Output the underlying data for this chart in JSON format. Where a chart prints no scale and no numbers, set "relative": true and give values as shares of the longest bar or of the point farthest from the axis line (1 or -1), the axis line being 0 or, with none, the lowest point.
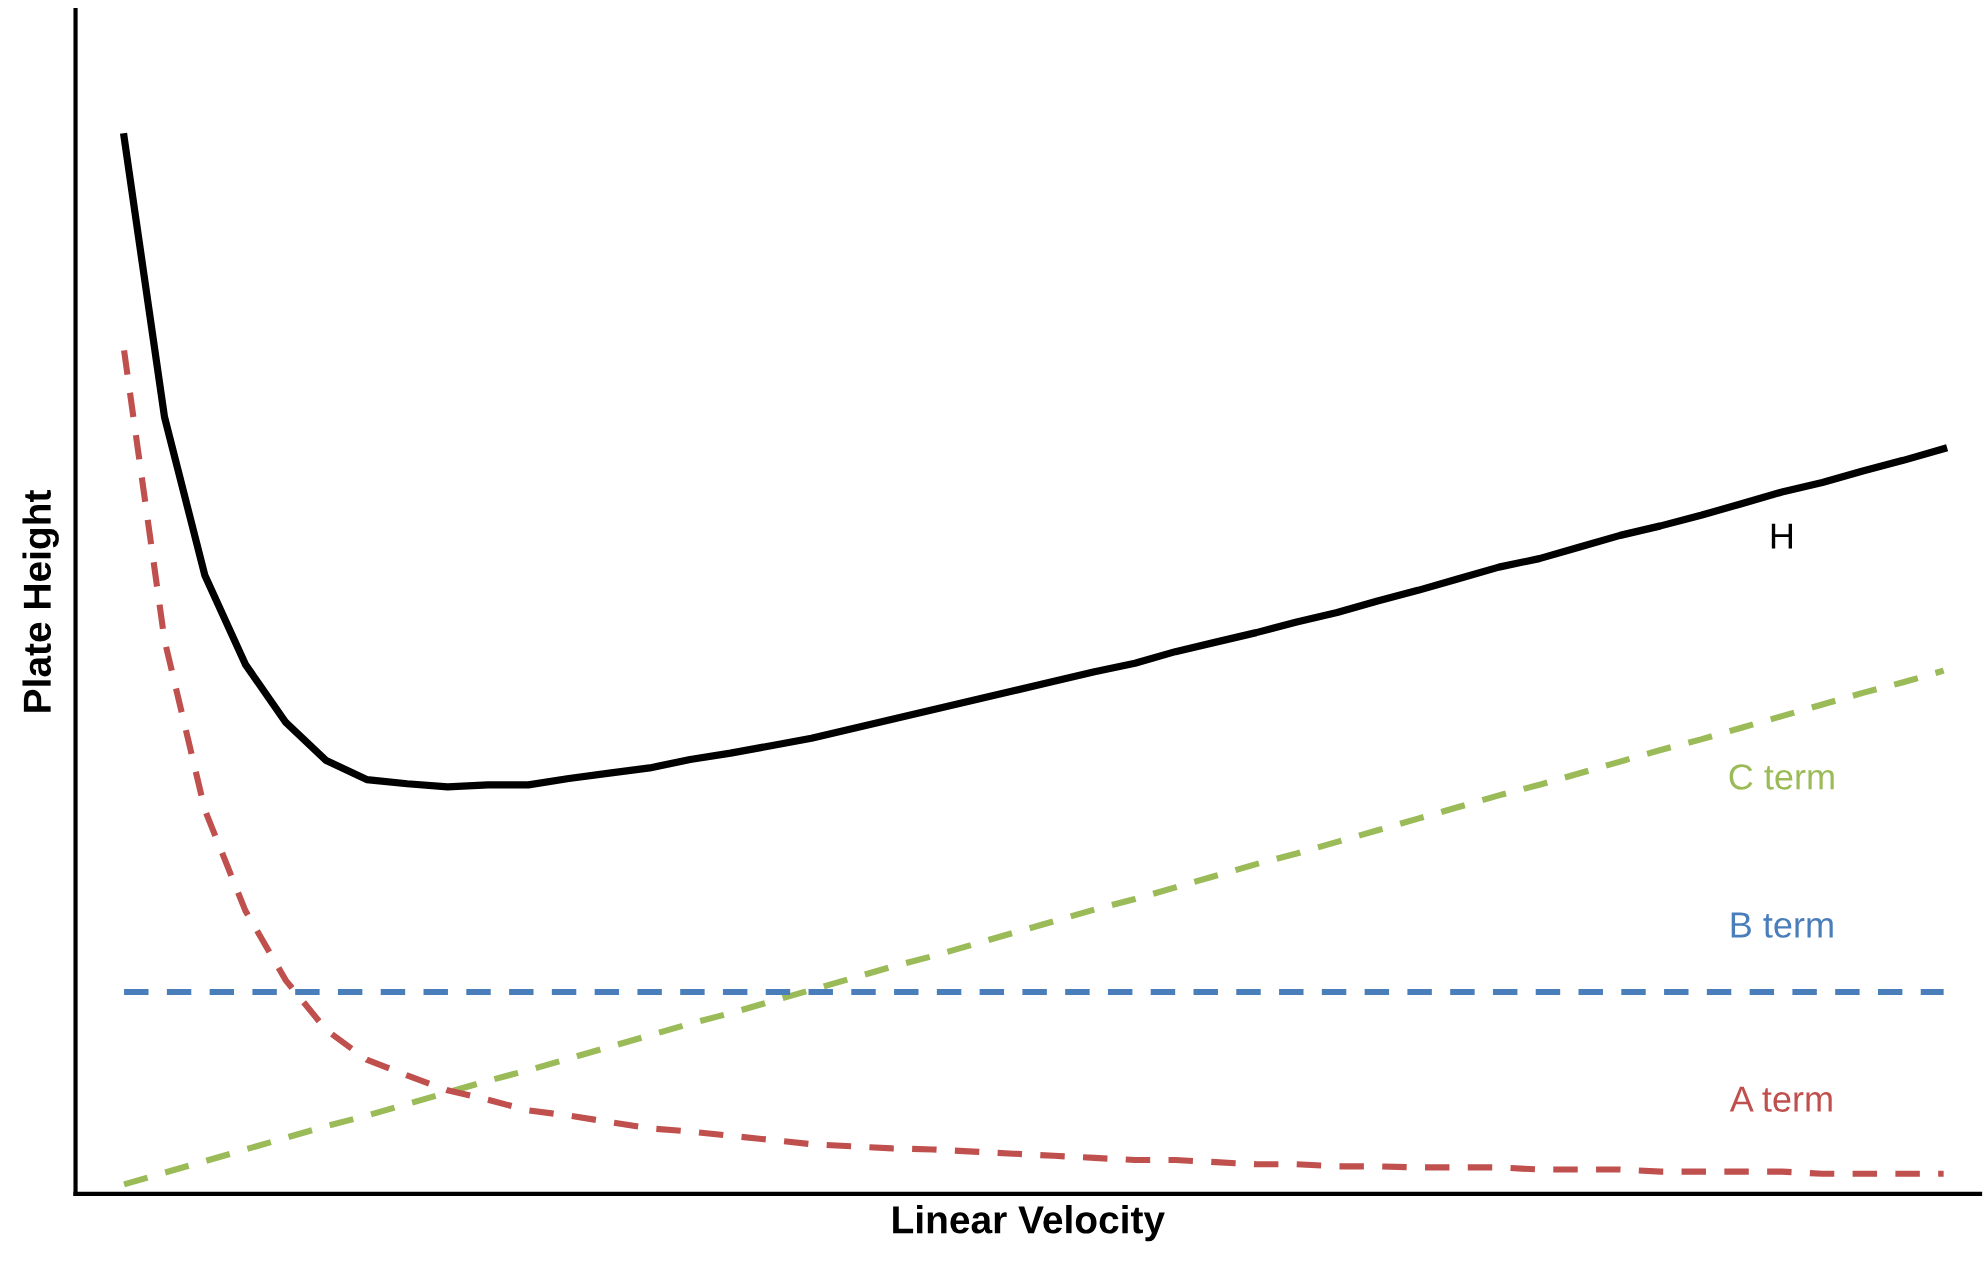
{
  "chart_data": {
    "type": "line",
    "relative": true,
    "xlabel": "Linear Velocity",
    "ylabel": "Plate Height",
    "marker": "none",
    "categories": [
      null,
      null,
      null,
      null,
      null,
      null,
      null,
      null,
      null,
      null,
      null,
      null,
      null,
      null,
      null,
      null,
      null,
      null,
      null,
      null,
      null,
      null,
      null,
      null,
      null,
      null,
      null,
      null,
      null,
      null,
      null,
      null,
      null,
      null,
      null,
      null,
      null,
      null,
      null,
      null,
      null,
      null,
      null,
      null,
      null,
      null
    ],
    "series": [
      {
        "name": "H",
        "color": "#000000",
        "line_style": "solid",
        "values": [
          1.0,
          0.735,
          0.585,
          0.501,
          0.446,
          0.41,
          0.392,
          0.388,
          0.385,
          0.387,
          0.387,
          0.393,
          0.398,
          0.403,
          0.411,
          0.417,
          0.424,
          0.431,
          0.44,
          0.449,
          0.458,
          0.467,
          0.476,
          0.485,
          0.494,
          0.502,
          0.513,
          0.522,
          0.531,
          0.541,
          0.55,
          0.561,
          0.571,
          0.582,
          0.593,
          0.601,
          0.612,
          0.623,
          0.632,
          0.642,
          0.653,
          0.664,
          0.673,
          0.684,
          0.694,
          0.705
        ]
      },
      {
        "name": "C term",
        "color": "#9bbb59",
        "line_style": "dashed",
        "values": [
          0.009,
          0.02,
          0.031,
          0.042,
          0.053,
          0.064,
          0.074,
          0.085,
          0.096,
          0.107,
          0.117,
          0.128,
          0.139,
          0.15,
          0.161,
          0.171,
          0.182,
          0.193,
          0.204,
          0.215,
          0.225,
          0.236,
          0.247,
          0.258,
          0.269,
          0.279,
          0.29,
          0.301,
          0.312,
          0.322,
          0.333,
          0.344,
          0.355,
          0.366,
          0.377,
          0.387,
          0.398,
          0.409,
          0.42,
          0.43,
          0.441,
          0.452,
          0.463,
          0.474,
          0.484,
          0.495
        ]
      },
      {
        "name": "B term",
        "color": "#4a7ebb",
        "line_style": "dashed",
        "values": [
          0.191,
          0.191,
          0.191,
          0.191,
          0.191,
          0.191,
          0.191,
          0.191,
          0.191,
          0.191,
          0.191,
          0.191,
          0.191,
          0.191,
          0.191,
          0.191,
          0.191,
          0.191,
          0.191,
          0.191,
          0.191,
          0.191,
          0.191,
          0.191,
          0.191,
          0.191,
          0.191,
          0.191,
          0.191,
          0.191,
          0.191,
          0.191,
          0.191,
          0.191,
          0.191,
          0.191,
          0.191,
          0.191,
          0.191,
          0.191,
          0.191,
          0.191,
          0.191,
          0.191,
          0.191,
          0.191
        ]
      },
      {
        "name": "A term",
        "color": "#c0504d",
        "line_style": "dashed",
        "values": [
          0.798,
          0.524,
          0.363,
          0.268,
          0.202,
          0.155,
          0.127,
          0.112,
          0.098,
          0.089,
          0.079,
          0.074,
          0.068,
          0.062,
          0.059,
          0.055,
          0.051,
          0.047,
          0.045,
          0.043,
          0.042,
          0.04,
          0.038,
          0.036,
          0.034,
          0.032,
          0.032,
          0.03,
          0.028,
          0.028,
          0.026,
          0.026,
          0.025,
          0.025,
          0.025,
          0.023,
          0.023,
          0.023,
          0.021,
          0.021,
          0.021,
          0.021,
          0.019,
          0.019,
          0.019,
          0.019
        ]
      }
    ]
  }
}
